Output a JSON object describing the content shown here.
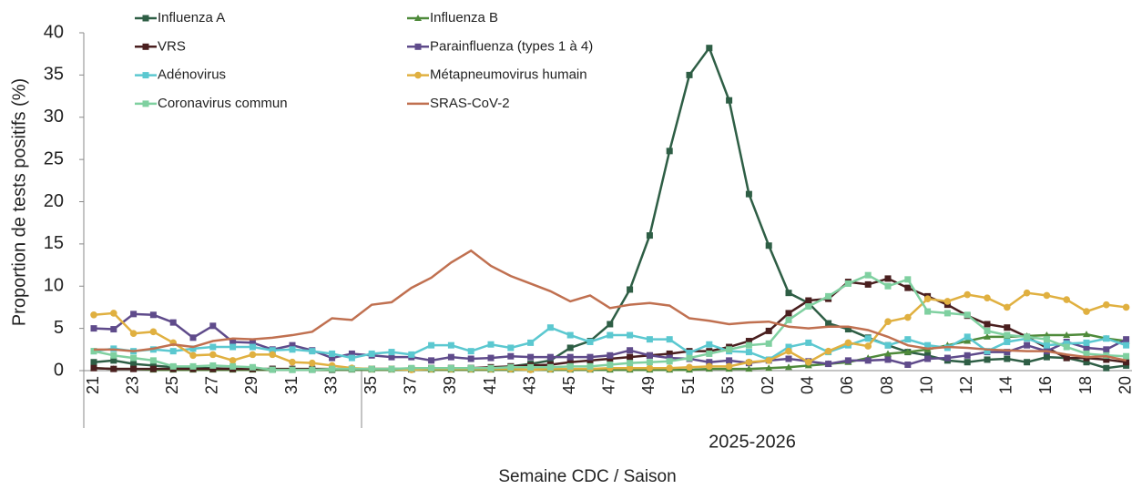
{
  "chart_data": {
    "type": "line",
    "ylabel": "Proportion de tests positifs (%)",
    "xlabel": "Semaine CDC / Saison",
    "season_label": "2025-2026",
    "categories": [
      "21",
      null,
      "23",
      null,
      "25",
      null,
      "27",
      null,
      "29",
      null,
      "31",
      null,
      "33",
      null,
      "35",
      null,
      "37",
      null,
      "39",
      null,
      "41",
      null,
      "43",
      null,
      "45",
      null,
      "47",
      null,
      "49",
      null,
      "51",
      null,
      "53",
      null,
      "02",
      null,
      "04",
      null,
      "06",
      null,
      "08",
      null,
      "10",
      null,
      "12",
      null,
      "14",
      null,
      "16",
      null,
      "18",
      null,
      "20"
    ],
    "ylim": [
      0,
      40
    ],
    "yticks": [
      0,
      5,
      10,
      15,
      20,
      25,
      30,
      35,
      40
    ],
    "grid": false,
    "series": [
      {
        "name": "Influenza A",
        "color": "#2e5e45",
        "marker": "square",
        "values": [
          1.0,
          1.2,
          0.8,
          0.6,
          0.4,
          0.3,
          0.3,
          0.2,
          0.2,
          0.2,
          0.1,
          0.1,
          0.1,
          0.2,
          0.2,
          0.2,
          0.2,
          0.2,
          0.3,
          0.3,
          0.3,
          0.5,
          0.8,
          1.2,
          2.7,
          3.5,
          5.5,
          9.6,
          16,
          26,
          35,
          38.2,
          32,
          20.9,
          14.8,
          9.2,
          8,
          5.6,
          4.9,
          3.9,
          3,
          2.2,
          1.8,
          1.2,
          1.0,
          1.3,
          1.4,
          1.0,
          1.6,
          1.5,
          1.0,
          0.3,
          0.6
        ]
      },
      {
        "name": "Influenza B",
        "color": "#4e8a3a",
        "marker": "triangle",
        "values": [
          0.3,
          0.2,
          0.2,
          0.1,
          0.1,
          0.1,
          0.1,
          0.1,
          0.1,
          0.1,
          0.1,
          0.1,
          0.1,
          0.1,
          0.1,
          0.1,
          0.1,
          0.1,
          0.1,
          0.1,
          0.1,
          0.1,
          0.1,
          0.1,
          0.1,
          0.1,
          0.1,
          0.1,
          0.1,
          0.1,
          0.1,
          0.2,
          0.2,
          0.2,
          0.3,
          0.4,
          0.6,
          0.8,
          1.0,
          1.5,
          2.0,
          2.2,
          2.5,
          3.0,
          3.5,
          4.0,
          4.0,
          4.1,
          4.2,
          4.2,
          4.3,
          3.8,
          3.5
        ]
      },
      {
        "name": "VRS",
        "color": "#4a1f1f",
        "marker": "square",
        "values": [
          0.3,
          0.2,
          0.2,
          0.2,
          0.2,
          0.2,
          0.2,
          0.2,
          0.2,
          0.2,
          0.2,
          0.2,
          0.2,
          0.2,
          0.2,
          0.2,
          0.2,
          0.3,
          0.3,
          0.3,
          0.4,
          0.5,
          0.6,
          0.7,
          1.0,
          1.2,
          1.4,
          1.6,
          1.8,
          2.0,
          2.3,
          2.3,
          2.8,
          3.5,
          4.7,
          6.8,
          8.3,
          8.5,
          10.5,
          10.2,
          10.9,
          9.8,
          8.8,
          7.8,
          6.5,
          5.5,
          5.1,
          4.0,
          2.7,
          1.5,
          1.5,
          1.3,
          1.0
        ]
      },
      {
        "name": "Parainfluenza (types 1 à 4)",
        "color": "#5f4b8b",
        "marker": "square",
        "values": [
          5.0,
          4.9,
          6.7,
          6.6,
          5.7,
          3.9,
          5.3,
          3.4,
          3.3,
          2.5,
          3.0,
          2.4,
          1.5,
          2.0,
          1.8,
          1.6,
          1.6,
          1.2,
          1.6,
          1.4,
          1.5,
          1.7,
          1.6,
          1.6,
          1.6,
          1.6,
          1.8,
          2.4,
          1.8,
          1.5,
          1.4,
          1.0,
          1.2,
          0.9,
          1.2,
          1.4,
          1.1,
          0.8,
          1.2,
          1.2,
          1.3,
          0.7,
          1.4,
          1.5,
          1.8,
          2.2,
          2.2,
          3.0,
          2.3,
          3.4,
          2.7,
          2.5,
          3.7
        ]
      },
      {
        "name": "Adénovirus",
        "color": "#5bc8d0",
        "marker": "square",
        "values": [
          2.3,
          2.6,
          2.3,
          2.5,
          2.3,
          2.6,
          2.8,
          2.8,
          2.8,
          2.4,
          2.5,
          2.3,
          2.0,
          1.5,
          2.0,
          2.2,
          1.9,
          3.0,
          3.0,
          2.3,
          3.1,
          2.7,
          3.3,
          5.1,
          4.2,
          3.4,
          4.2,
          4.2,
          3.7,
          3.7,
          2.1,
          3.1,
          2.3,
          2.2,
          1.3,
          2.8,
          3.3,
          2.2,
          3.0,
          3.8,
          3.0,
          3.7,
          3.0,
          2.7,
          4.0,
          2.3,
          3.4,
          3.8,
          3.0,
          3.2,
          3.3,
          3.8,
          3.0
        ]
      },
      {
        "name": "Métapneumovirus humain",
        "color": "#e0b040",
        "marker": "circle",
        "values": [
          6.6,
          6.8,
          4.4,
          4.6,
          3.3,
          1.8,
          1.9,
          1.2,
          1.9,
          1.9,
          1.0,
          0.9,
          0.6,
          0.3,
          0.2,
          0.2,
          0.1,
          0.2,
          0.2,
          0.2,
          0.2,
          0.2,
          0.1,
          0.2,
          0.2,
          0.2,
          0.3,
          0.3,
          0.3,
          0.3,
          0.4,
          0.5,
          0.5,
          1.0,
          1.2,
          2.3,
          1.0,
          2.3,
          3.3,
          2.9,
          5.8,
          6.3,
          8.5,
          8.2,
          9.0,
          8.6,
          7.5,
          9.2,
          8.9,
          8.4,
          7.0,
          7.8,
          7.5
        ]
      },
      {
        "name": "Coronavirus commun",
        "color": "#7fd0a0",
        "marker": "square",
        "values": [
          2.3,
          1.8,
          1.5,
          1.2,
          0.5,
          0.5,
          0.6,
          0.5,
          0.4,
          0.1,
          0.1,
          0.1,
          0.2,
          0.2,
          0.2,
          0.2,
          0.3,
          0.3,
          0.3,
          0.3,
          0.3,
          0.4,
          0.4,
          0.4,
          0.5,
          0.5,
          0.7,
          0.9,
          1.0,
          1.1,
          1.5,
          2.0,
          2.5,
          3.0,
          3.2,
          6.0,
          7.6,
          8.8,
          10.3,
          11.3,
          10.0,
          10.8,
          7.0,
          6.8,
          6.6,
          4.7,
          4.2,
          4.0,
          3.7,
          2.8,
          2.0,
          1.8,
          1.7
        ]
      },
      {
        "name": "SRAS-CoV-2",
        "color": "#c07050",
        "marker": "none",
        "values": [
          2.5,
          2.5,
          2.3,
          2.6,
          3.1,
          2.8,
          3.5,
          3.8,
          3.7,
          3.9,
          4.2,
          4.6,
          6.2,
          6.0,
          7.8,
          8.1,
          9.8,
          11.0,
          12.8,
          14.2,
          12.4,
          11.2,
          10.3,
          9.4,
          8.2,
          8.9,
          7.4,
          7.8,
          8.0,
          7.7,
          6.2,
          5.9,
          5.5,
          5.7,
          5.8,
          5.2,
          5.0,
          5.2,
          5.2,
          4.8,
          4.0,
          3.0,
          2.6,
          2.8,
          2.7,
          2.5,
          2.4,
          2.3,
          2.3,
          1.9,
          1.6,
          1.7,
          1.2
        ]
      }
    ]
  }
}
